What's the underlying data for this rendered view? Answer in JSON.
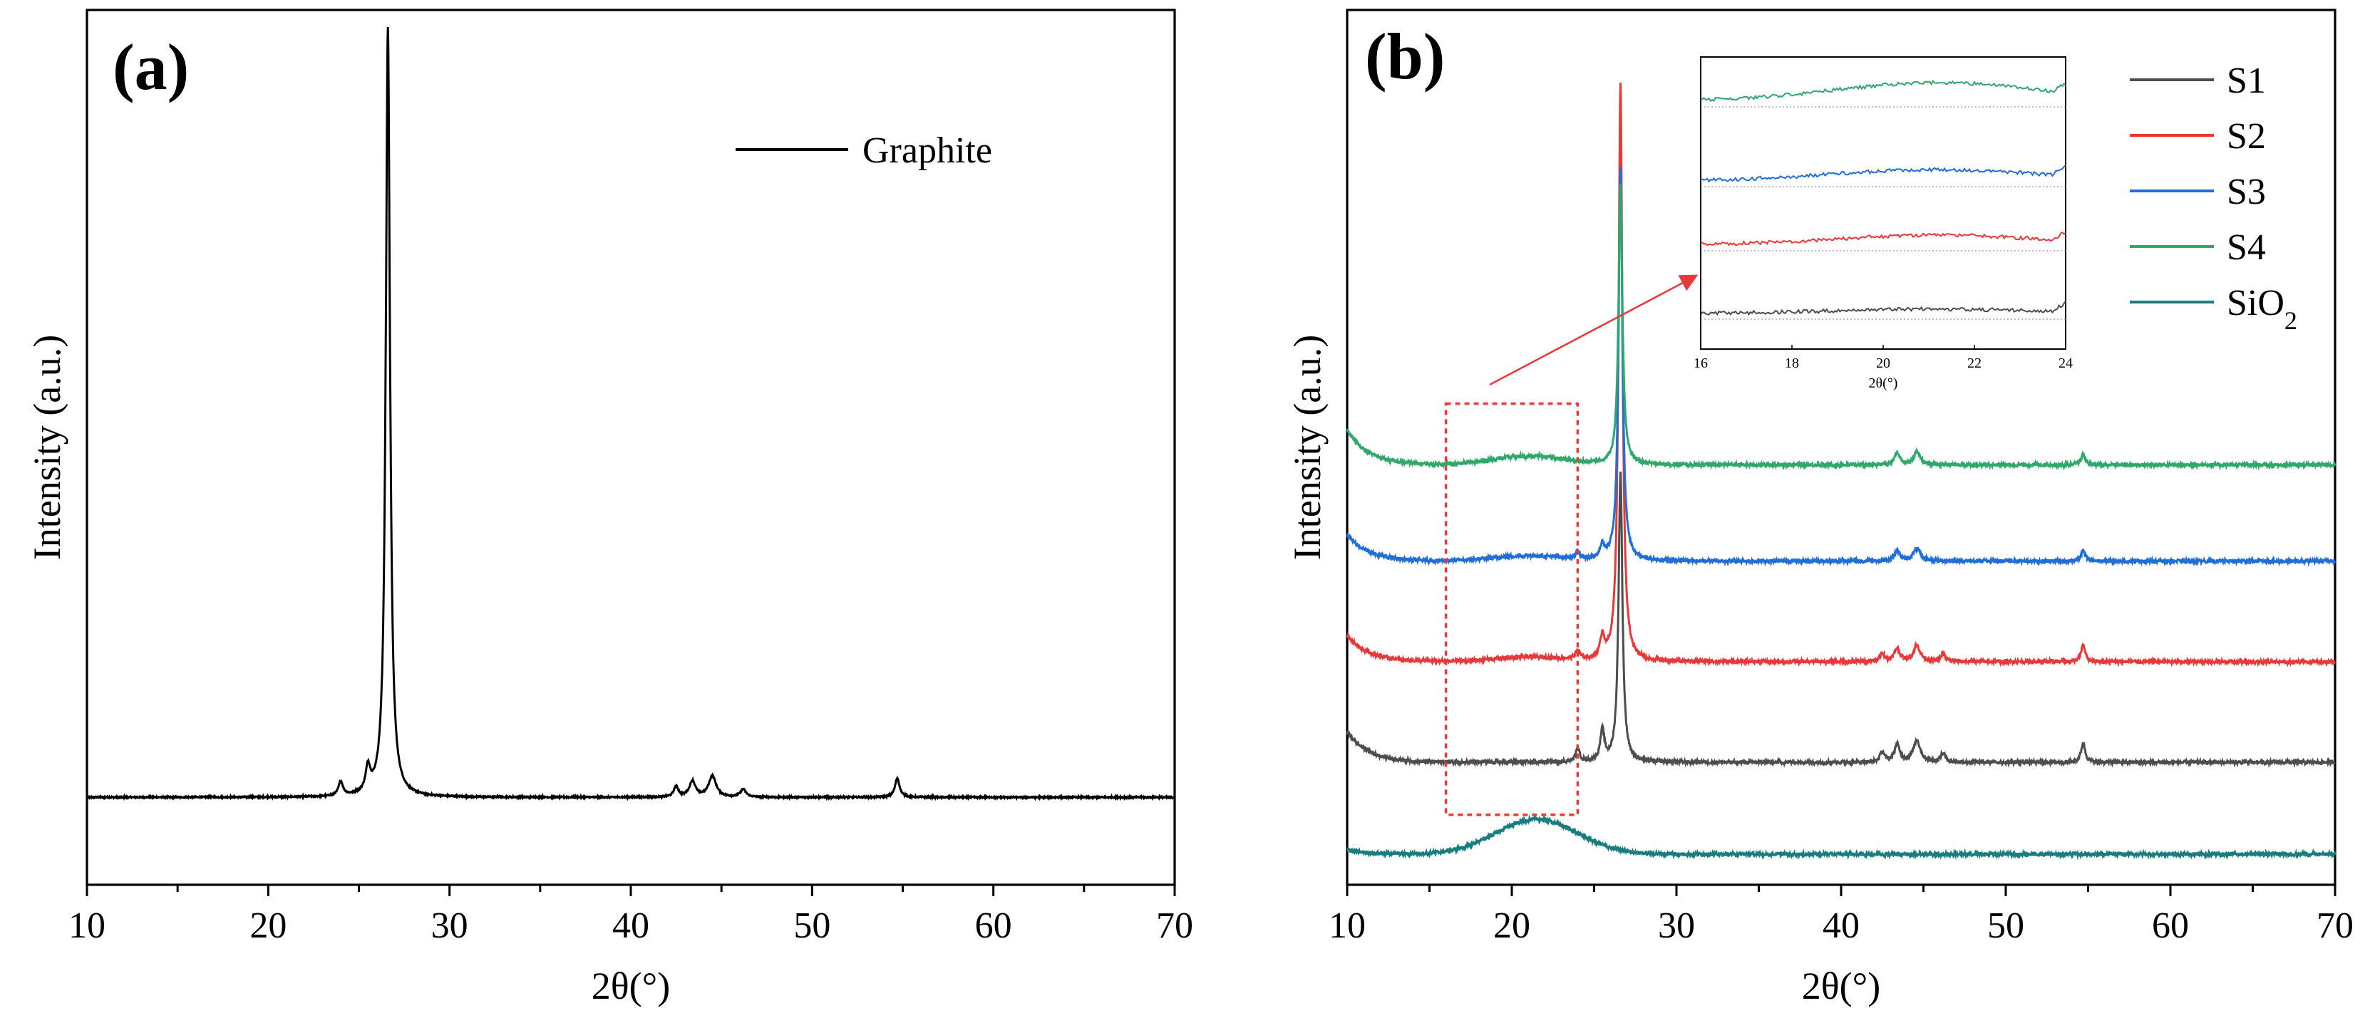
{
  "chart_data": [
    {
      "panel": "(a)",
      "type": "line",
      "title": "",
      "xlabel": "2θ(°)",
      "ylabel": "Intensity (a.u.)",
      "xlim": [
        10,
        70
      ],
      "ylim": [
        0,
        1.0
      ],
      "x_ticks": [
        10,
        20,
        30,
        40,
        50,
        60,
        70
      ],
      "x_tick_labels": [
        "10",
        "20",
        "30",
        "40",
        "50",
        "60",
        "70"
      ],
      "legend": {
        "position": "top-right",
        "entries": [
          "Graphite"
        ]
      },
      "series": [
        {
          "name": "Graphite",
          "color": "#000000",
          "baseline": 0.1,
          "peaks": [
            {
              "x": 24.0,
              "height": 0.016,
              "width": 0.15
            },
            {
              "x": 25.5,
              "height": 0.028,
              "width": 0.15
            },
            {
              "x": 26.6,
              "height": 0.88,
              "width": 0.14
            },
            {
              "x": 42.5,
              "height": 0.012,
              "width": 0.15
            },
            {
              "x": 43.4,
              "height": 0.018,
              "width": 0.2
            },
            {
              "x": 44.5,
              "height": 0.024,
              "width": 0.25
            },
            {
              "x": 46.2,
              "height": 0.009,
              "width": 0.18
            },
            {
              "x": 54.7,
              "height": 0.022,
              "width": 0.15
            }
          ]
        }
      ]
    },
    {
      "panel": "(b)",
      "type": "line",
      "title": "",
      "xlabel": "2θ(°)",
      "ylabel": "Intensity (a.u.)",
      "xlim": [
        10,
        70
      ],
      "ylim": [
        0,
        1.0
      ],
      "x_ticks": [
        10,
        20,
        30,
        40,
        50,
        60,
        70
      ],
      "x_tick_labels": [
        "10",
        "20",
        "30",
        "40",
        "50",
        "60",
        "70"
      ],
      "legend": {
        "position": "top-right",
        "entries": [
          {
            "name": "S1",
            "sub": "",
            "color": "#4d4d4d"
          },
          {
            "name": "S2",
            "sub": "",
            "color": "#e8393a"
          },
          {
            "name": "S3",
            "sub": "",
            "color": "#1f6fd6"
          },
          {
            "name": "S4",
            "sub": "",
            "color": "#2fa86a"
          },
          {
            "name": "SiO",
            "sub": "2",
            "color": "#1a7d7d"
          }
        ]
      },
      "series": [
        {
          "name": "SiO₂",
          "color": "#1a7d7d",
          "baseline": 0.035,
          "hump": {
            "x": 21.5,
            "height": 0.04,
            "width": 3.5
          },
          "start_rise": 0.005,
          "peaks": []
        },
        {
          "name": "S1",
          "color": "#4d4d4d",
          "baseline": 0.14,
          "hump": {
            "x": 21,
            "height": 0.0,
            "width": 3
          },
          "start_rise": 0.035,
          "peaks": [
            {
              "x": 24.0,
              "height": 0.015,
              "width": 0.15
            },
            {
              "x": 25.5,
              "height": 0.035,
              "width": 0.15
            },
            {
              "x": 26.6,
              "height": 0.33,
              "width": 0.14
            },
            {
              "x": 42.5,
              "height": 0.012,
              "width": 0.15
            },
            {
              "x": 43.4,
              "height": 0.02,
              "width": 0.2
            },
            {
              "x": 44.6,
              "height": 0.025,
              "width": 0.25
            },
            {
              "x": 46.2,
              "height": 0.01,
              "width": 0.18
            },
            {
              "x": 54.7,
              "height": 0.022,
              "width": 0.15
            }
          ]
        },
        {
          "name": "S2",
          "color": "#e8393a",
          "baseline": 0.255,
          "hump": {
            "x": 21,
            "height": 0.005,
            "width": 3
          },
          "start_rise": 0.03,
          "peaks": [
            {
              "x": 24.0,
              "height": 0.01,
              "width": 0.15
            },
            {
              "x": 25.5,
              "height": 0.025,
              "width": 0.15
            },
            {
              "x": 26.6,
              "height": 0.66,
              "width": 0.14
            },
            {
              "x": 42.5,
              "height": 0.01,
              "width": 0.15
            },
            {
              "x": 43.4,
              "height": 0.015,
              "width": 0.2
            },
            {
              "x": 44.6,
              "height": 0.018,
              "width": 0.25
            },
            {
              "x": 46.2,
              "height": 0.008,
              "width": 0.18
            },
            {
              "x": 54.7,
              "height": 0.02,
              "width": 0.15
            }
          ]
        },
        {
          "name": "S3",
          "color": "#1f6fd6",
          "baseline": 0.37,
          "hump": {
            "x": 21,
            "height": 0.006,
            "width": 3
          },
          "start_rise": 0.03,
          "peaks": [
            {
              "x": 24.0,
              "height": 0.008,
              "width": 0.15
            },
            {
              "x": 25.5,
              "height": 0.015,
              "width": 0.15
            },
            {
              "x": 26.6,
              "height": 0.45,
              "width": 0.14
            },
            {
              "x": 43.4,
              "height": 0.012,
              "width": 0.2
            },
            {
              "x": 44.6,
              "height": 0.014,
              "width": 0.25
            },
            {
              "x": 54.7,
              "height": 0.012,
              "width": 0.15
            }
          ]
        },
        {
          "name": "S4",
          "color": "#2fa86a",
          "baseline": 0.48,
          "hump": {
            "x": 21,
            "height": 0.01,
            "width": 3
          },
          "start_rise": 0.04,
          "peaks": [
            {
              "x": 26.6,
              "height": 0.32,
              "width": 0.14
            },
            {
              "x": 43.4,
              "height": 0.012,
              "width": 0.2
            },
            {
              "x": 44.6,
              "height": 0.014,
              "width": 0.25
            },
            {
              "x": 54.7,
              "height": 0.012,
              "width": 0.15
            }
          ]
        }
      ],
      "highlight_box": {
        "x_range": [
          16,
          24
        ],
        "y_range": [
          0.08,
          0.55
        ]
      },
      "inset": {
        "xlabel": "2θ(°)",
        "xlim": [
          16,
          24
        ],
        "x_ticks": [
          16,
          18,
          20,
          22,
          24
        ],
        "x_tick_labels": [
          "16",
          "18",
          "20",
          "22",
          "24"
        ],
        "series_order": [
          "S1",
          "S2",
          "S3",
          "S4"
        ]
      }
    }
  ]
}
